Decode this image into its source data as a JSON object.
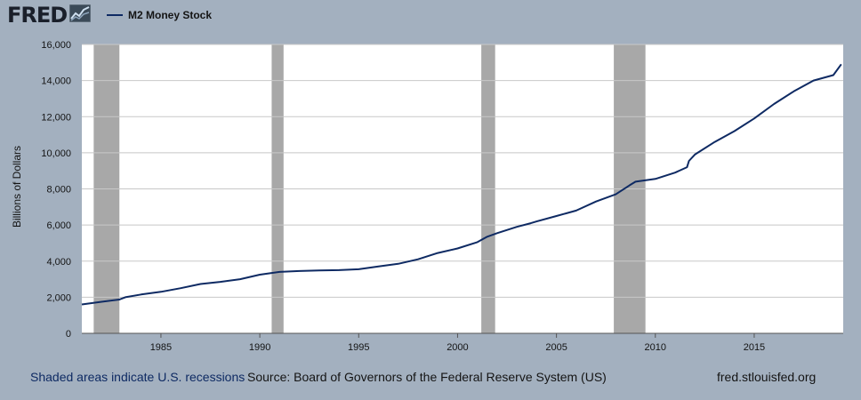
{
  "header": {
    "logo_text": "FRED",
    "logo_icon": "line-graph-icon"
  },
  "chart_data": {
    "type": "line",
    "title": "",
    "xlabel": "",
    "ylabel": "Billions of Dollars",
    "xlim": [
      1981.0,
      2019.5
    ],
    "ylim": [
      0,
      16000
    ],
    "x_ticks": [
      1985,
      1990,
      1995,
      2000,
      2005,
      2010,
      2015
    ],
    "x_tick_labels": [
      "1985",
      "1990",
      "1995",
      "2000",
      "2005",
      "2010",
      "2015"
    ],
    "y_ticks": [
      0,
      2000,
      4000,
      6000,
      8000,
      10000,
      12000,
      14000,
      16000
    ],
    "y_tick_labels": [
      "0",
      "2,000",
      "4,000",
      "6,000",
      "8,000",
      "10,000",
      "12,000",
      "14,000",
      "16,000"
    ],
    "grid": "horizontal",
    "legend_position": "top-left",
    "series": [
      {
        "name": "M2 Money Stock",
        "color": "#0e2a63",
        "x": [
          1981.0,
          1982.0,
          1982.9,
          1983.2,
          1984.0,
          1985.0,
          1986.0,
          1987.0,
          1988.0,
          1989.0,
          1990.0,
          1991.0,
          1992.0,
          1993.0,
          1994.0,
          1995.0,
          1996.0,
          1997.0,
          1998.0,
          1999.0,
          2000.0,
          2001.0,
          2001.5,
          2002.0,
          2003.0,
          2003.7,
          2004.0,
          2005.0,
          2006.0,
          2007.0,
          2008.0,
          2008.7,
          2009.0,
          2010.0,
          2011.0,
          2011.6,
          2011.7,
          2012.0,
          2013.0,
          2014.0,
          2015.0,
          2016.0,
          2017.0,
          2018.0,
          2019.0,
          2019.4
        ],
        "values": [
          1600,
          1750,
          1870,
          2000,
          2150,
          2300,
          2500,
          2730,
          2850,
          3000,
          3250,
          3400,
          3450,
          3480,
          3500,
          3550,
          3700,
          3850,
          4100,
          4450,
          4700,
          5050,
          5350,
          5550,
          5900,
          6100,
          6200,
          6500,
          6800,
          7300,
          7700,
          8200,
          8400,
          8550,
          8900,
          9200,
          9550,
          9900,
          10600,
          11200,
          11900,
          12700,
          13400,
          14000,
          14300,
          14900
        ]
      }
    ],
    "recessions": [
      {
        "start": 1981.6,
        "end": 1982.9
      },
      {
        "start": 1990.6,
        "end": 1991.2
      },
      {
        "start": 2001.2,
        "end": 2001.9
      },
      {
        "start": 2007.9,
        "end": 2009.5
      }
    ],
    "recession_color": "#a8a8a8"
  },
  "footer": {
    "recession_note": "Shaded areas indicate U.S. recessions",
    "source": "Source: Board of Governors of the Federal Reserve System (US)",
    "site": "fred.stlouisfed.org"
  }
}
